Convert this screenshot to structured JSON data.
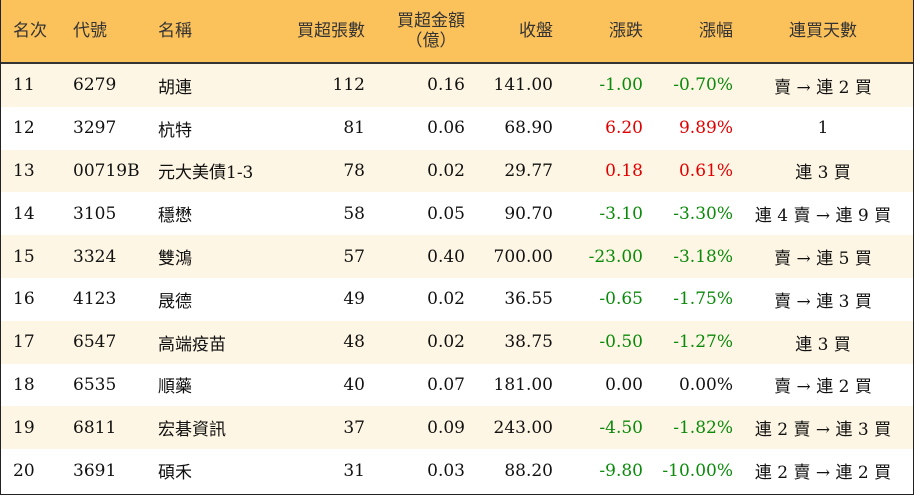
{
  "headers": {
    "rank": "名次",
    "code": "代號",
    "name": "名稱",
    "lots": "買超張數",
    "amount_line1": "買超金額",
    "amount_line2": "（億）",
    "close": "收盤",
    "change": "漲跌",
    "pct": "漲幅",
    "days": "連買天數"
  },
  "colors": {
    "header_bg": "#fbc15b",
    "row_alt_bg": "#fef6e4",
    "up": "#e00000",
    "down": "#0b8a0b"
  },
  "rows": [
    {
      "rank": "11",
      "code": "6279",
      "name": "胡連",
      "lots": "112",
      "amount": "0.16",
      "close": "141.00",
      "change": "-1.00",
      "pct": "-0.70%",
      "trend": "down",
      "days": "賣 → 連 2 買"
    },
    {
      "rank": "12",
      "code": "3297",
      "name": "杭特",
      "lots": "81",
      "amount": "0.06",
      "close": "68.90",
      "change": "6.20",
      "pct": "9.89%",
      "trend": "up",
      "days": "1"
    },
    {
      "rank": "13",
      "code": "00719B",
      "name": "元大美債1-3",
      "lots": "78",
      "amount": "0.02",
      "close": "29.77",
      "change": "0.18",
      "pct": "0.61%",
      "trend": "up",
      "days": "連 3 買"
    },
    {
      "rank": "14",
      "code": "3105",
      "name": "穩懋",
      "lots": "58",
      "amount": "0.05",
      "close": "90.70",
      "change": "-3.10",
      "pct": "-3.30%",
      "trend": "down",
      "days": "連 4 賣 → 連 9 買"
    },
    {
      "rank": "15",
      "code": "3324",
      "name": "雙鴻",
      "lots": "57",
      "amount": "0.40",
      "close": "700.00",
      "change": "-23.00",
      "pct": "-3.18%",
      "trend": "down",
      "days": "賣 → 連 5 買"
    },
    {
      "rank": "16",
      "code": "4123",
      "name": "晟德",
      "lots": "49",
      "amount": "0.02",
      "close": "36.55",
      "change": "-0.65",
      "pct": "-1.75%",
      "trend": "down",
      "days": "賣 → 連 3 買"
    },
    {
      "rank": "17",
      "code": "6547",
      "name": "高端疫苗",
      "lots": "48",
      "amount": "0.02",
      "close": "38.75",
      "change": "-0.50",
      "pct": "-1.27%",
      "trend": "down",
      "days": "連 3 買"
    },
    {
      "rank": "18",
      "code": "6535",
      "name": "順藥",
      "lots": "40",
      "amount": "0.07",
      "close": "181.00",
      "change": "0.00",
      "pct": "0.00%",
      "trend": "flat",
      "days": "賣 → 連 2 買"
    },
    {
      "rank": "19",
      "code": "6811",
      "name": "宏碁資訊",
      "lots": "37",
      "amount": "0.09",
      "close": "243.00",
      "change": "-4.50",
      "pct": "-1.82%",
      "trend": "down",
      "days": "連 2 賣 → 連 3 買"
    },
    {
      "rank": "20",
      "code": "3691",
      "name": "碩禾",
      "lots": "31",
      "amount": "0.03",
      "close": "88.20",
      "change": "-9.80",
      "pct": "-10.00%",
      "trend": "down",
      "days": "連 2 賣 → 連 2 買"
    }
  ]
}
